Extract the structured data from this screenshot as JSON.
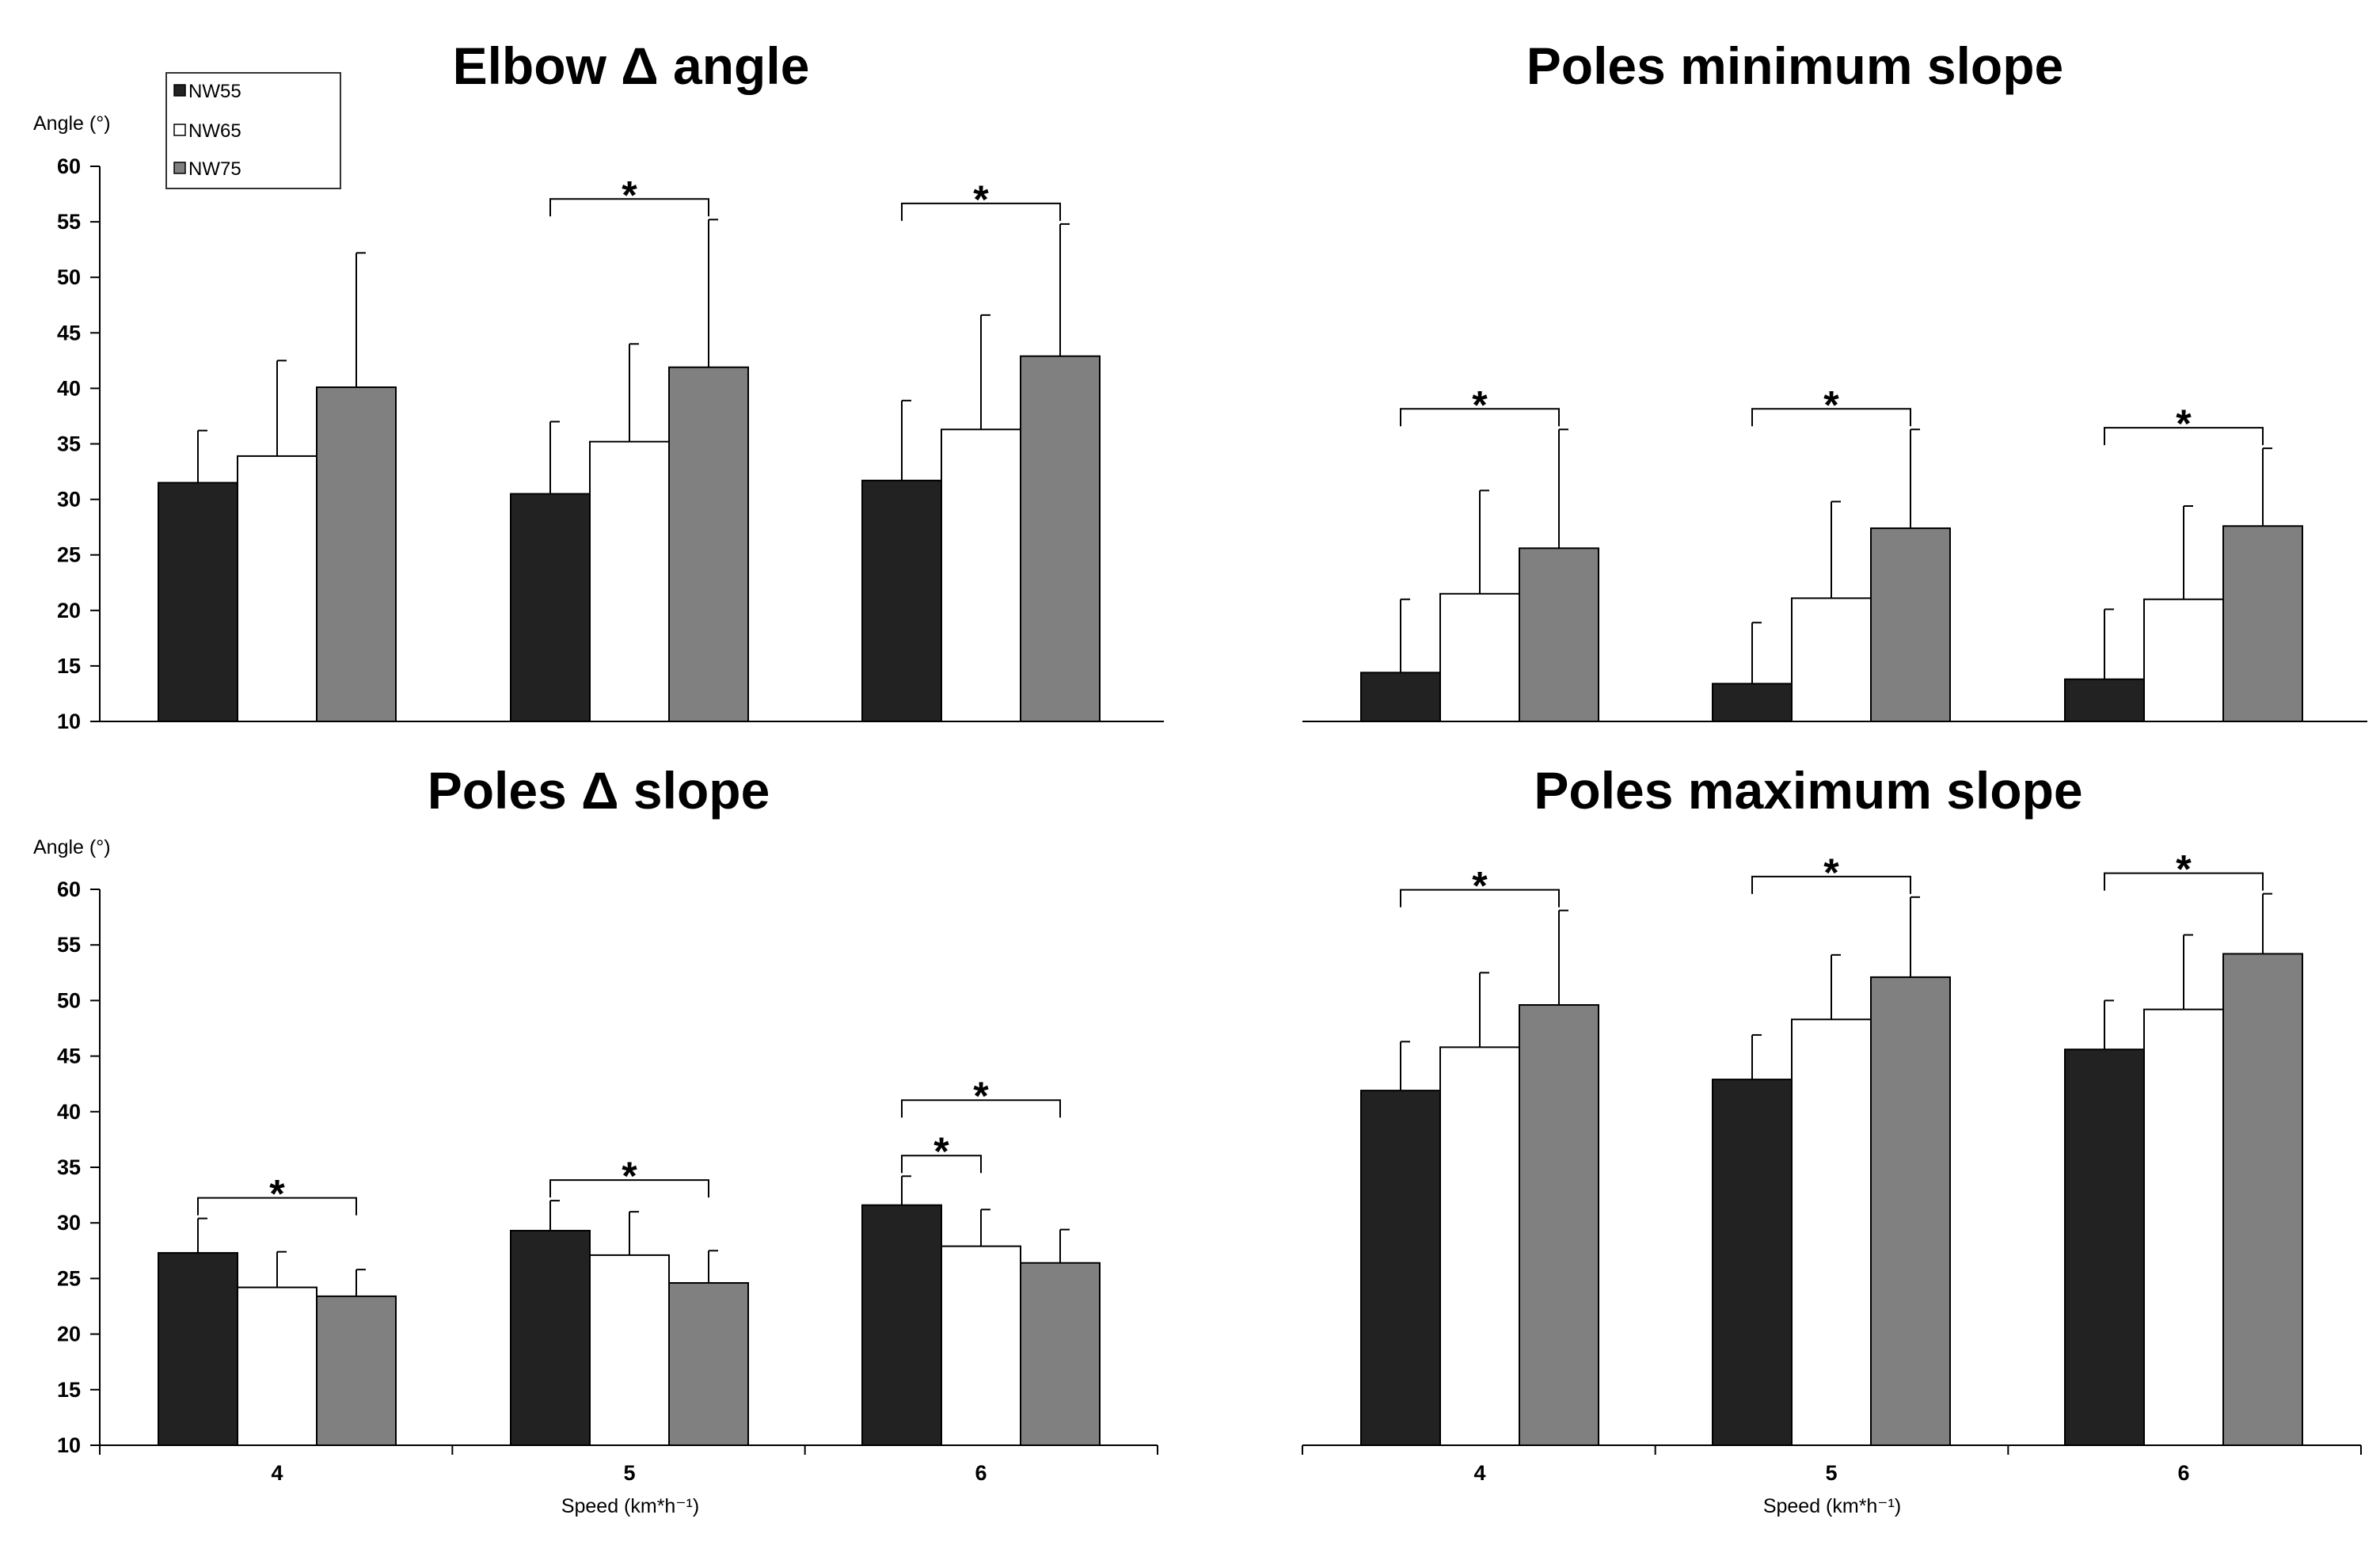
{
  "colors": {
    "NW55": "#222222",
    "NW65": "#ffffff",
    "NW75": "#808080",
    "axis": "#000000"
  },
  "chart_data": [
    {
      "type": "bar",
      "title": "Elbow Δ angle",
      "ylabel": "Angle (°)",
      "xlabel": "",
      "categories": [
        "4",
        "5",
        "6"
      ],
      "ylim": [
        10,
        60
      ],
      "yticks": [
        10,
        15,
        20,
        25,
        30,
        35,
        40,
        45,
        50,
        55,
        60
      ],
      "series": [
        {
          "name": "NW55",
          "values": [
            31.5,
            30.5,
            31.7
          ],
          "errors": [
            4.7,
            6.5,
            7.2
          ]
        },
        {
          "name": "NW65",
          "values": [
            33.9,
            35.2,
            36.3
          ],
          "errors": [
            8.6,
            8.8,
            10.3
          ]
        },
        {
          "name": "NW75",
          "values": [
            40.1,
            41.9,
            42.9
          ],
          "errors": [
            12.1,
            13.3,
            11.9
          ]
        }
      ],
      "significance": [
        {
          "category": 1,
          "from": "NW55",
          "to": "NW75",
          "label": "*"
        },
        {
          "category": 2,
          "from": "NW55",
          "to": "NW75",
          "label": "*"
        }
      ]
    },
    {
      "type": "bar",
      "title": "Poles minimum slope",
      "ylabel": "",
      "xlabel": "",
      "categories": [
        "4",
        "5",
        "6"
      ],
      "ylim": [
        10,
        60
      ],
      "series": [
        {
          "name": "NW55",
          "values": [
            14.4,
            13.4,
            13.8
          ],
          "errors": [
            6.6,
            5.5,
            6.3
          ]
        },
        {
          "name": "NW65",
          "values": [
            21.5,
            21.1,
            21.0
          ],
          "errors": [
            9.3,
            8.7,
            8.4
          ]
        },
        {
          "name": "NW75",
          "values": [
            25.6,
            27.4,
            27.6
          ],
          "errors": [
            10.7,
            8.9,
            7.0
          ]
        }
      ],
      "significance": [
        {
          "category": 0,
          "from": "NW55",
          "to": "NW75",
          "label": "*"
        },
        {
          "category": 1,
          "from": "NW55",
          "to": "NW75",
          "label": "*"
        },
        {
          "category": 2,
          "from": "NW55",
          "to": "NW75",
          "label": "*"
        }
      ]
    },
    {
      "type": "bar",
      "title": "Poles Δ slope",
      "ylabel": "Angle (°)",
      "xlabel": "Speed (km*h⁻¹)",
      "categories": [
        "4",
        "5",
        "6"
      ],
      "ylim": [
        10,
        60
      ],
      "yticks": [
        10,
        15,
        20,
        25,
        30,
        35,
        40,
        45,
        50,
        55,
        60
      ],
      "series": [
        {
          "name": "NW55",
          "values": [
            27.3,
            29.3,
            31.6
          ],
          "errors": [
            3.1,
            2.7,
            2.6
          ]
        },
        {
          "name": "NW65",
          "values": [
            24.2,
            27.1,
            27.9
          ],
          "errors": [
            3.2,
            3.9,
            3.3
          ]
        },
        {
          "name": "NW75",
          "values": [
            23.4,
            24.6,
            26.4
          ],
          "errors": [
            2.4,
            2.9,
            3.0
          ]
        }
      ],
      "significance": [
        {
          "category": 0,
          "from": "NW55",
          "to": "NW75",
          "label": "*"
        },
        {
          "category": 1,
          "from": "NW55",
          "to": "NW75",
          "label": "*"
        },
        {
          "category": 2,
          "from": "NW55",
          "to": "NW65",
          "label": "*"
        },
        {
          "category": 2,
          "from": "NW55",
          "to": "NW75",
          "label": "*"
        }
      ]
    },
    {
      "type": "bar",
      "title": "Poles maximum slope",
      "ylabel": "",
      "xlabel": "Speed (km*h⁻¹)",
      "categories": [
        "4",
        "5",
        "6"
      ],
      "ylim": [
        10,
        60
      ],
      "series": [
        {
          "name": "NW55",
          "values": [
            41.9,
            42.9,
            45.6
          ],
          "errors": [
            4.4,
            4.0,
            4.4
          ]
        },
        {
          "name": "NW65",
          "values": [
            45.8,
            48.3,
            49.2
          ],
          "errors": [
            6.7,
            5.8,
            6.7
          ]
        },
        {
          "name": "NW75",
          "values": [
            49.6,
            52.1,
            54.2
          ],
          "errors": [
            8.5,
            7.2,
            5.4
          ]
        }
      ],
      "significance": [
        {
          "category": 0,
          "from": "NW55",
          "to": "NW75",
          "label": "*"
        },
        {
          "category": 1,
          "from": "NW55",
          "to": "NW75",
          "label": "*"
        },
        {
          "category": 2,
          "from": "NW55",
          "to": "NW75",
          "label": "*"
        }
      ]
    }
  ],
  "legend": {
    "items": [
      "NW55",
      "NW65",
      "NW75"
    ]
  }
}
